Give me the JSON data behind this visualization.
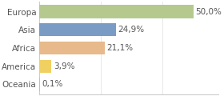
{
  "categories": [
    "Europa",
    "Asia",
    "Africa",
    "America",
    "Oceania"
  ],
  "values": [
    50.0,
    24.9,
    21.1,
    3.9,
    0.1
  ],
  "bar_colors": [
    "#b5c98e",
    "#7a9cc4",
    "#e8b98a",
    "#f0d060",
    "#c0c0c0"
  ],
  "labels": [
    "50,0%",
    "24,9%",
    "21,1%",
    "3,9%",
    "0,1%"
  ],
  "background_color": "#ffffff",
  "xlim": [
    0,
    58
  ],
  "bar_height": 0.72,
  "label_fontsize": 7.5,
  "tick_fontsize": 7.5,
  "text_color": "#555555"
}
